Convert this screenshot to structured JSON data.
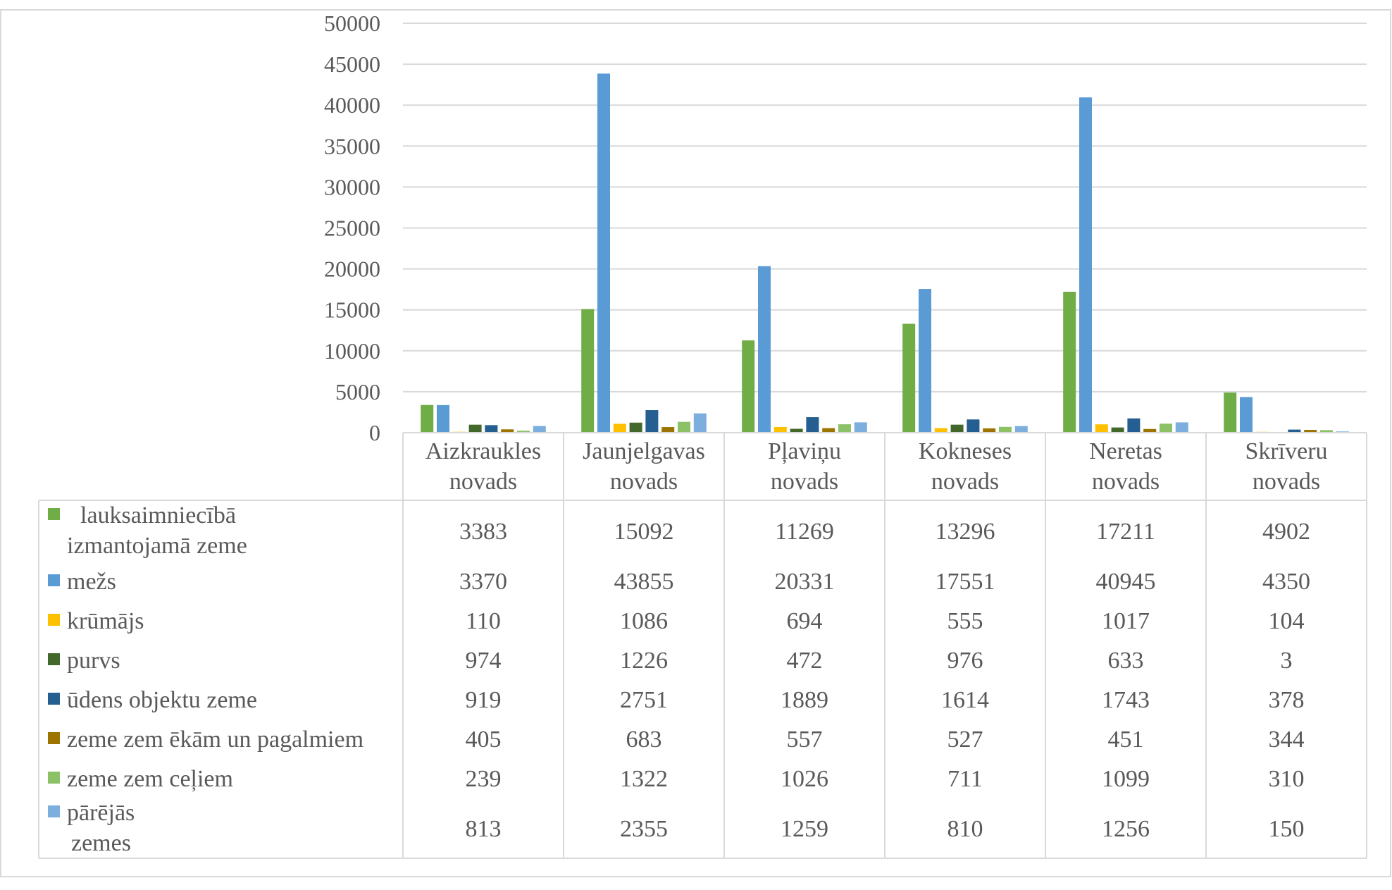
{
  "chart_data": {
    "type": "bar",
    "title": "",
    "xlabel": "",
    "ylabel": "",
    "ylim": [
      0,
      50000
    ],
    "yticks": [
      0,
      5000,
      10000,
      15000,
      20000,
      25000,
      30000,
      35000,
      40000,
      45000,
      50000
    ],
    "grid": true,
    "legend": "data-table-bottom",
    "categories": [
      [
        "Aizkraukles",
        "novads"
      ],
      [
        "Jaunjelgavas",
        "novads"
      ],
      [
        "Pļaviņu",
        "novads"
      ],
      [
        "Kokneses",
        "novads"
      ],
      [
        "Neretas",
        "novads"
      ],
      [
        "Skrīveru",
        "novads"
      ]
    ],
    "series": [
      {
        "name": [
          "lauksaimniecībā",
          "izmantojamā zeme"
        ],
        "color": "#70AD47",
        "values": [
          3383,
          15092,
          11269,
          13296,
          17211,
          4902
        ]
      },
      {
        "name": [
          "mežs"
        ],
        "color": "#5B9BD5",
        "values": [
          3370,
          43855,
          20331,
          17551,
          40945,
          4350
        ]
      },
      {
        "name": [
          "krūmājs"
        ],
        "color": "#FFC000",
        "values": [
          110,
          1086,
          694,
          555,
          1017,
          104
        ]
      },
      {
        "name": [
          "purvs"
        ],
        "color": "#43682B",
        "values": [
          974,
          1226,
          472,
          976,
          633,
          3
        ]
      },
      {
        "name": [
          "ūdens objektu zeme"
        ],
        "color": "#255E91",
        "values": [
          919,
          2751,
          1889,
          1614,
          1743,
          378
        ]
      },
      {
        "name": [
          "zeme zem ēkām un pagalmiem"
        ],
        "color": "#9E7400",
        "values": [
          405,
          683,
          557,
          527,
          451,
          344
        ]
      },
      {
        "name": [
          "zeme zem ceļiem"
        ],
        "color": "#8CC168",
        "values": [
          239,
          1322,
          1026,
          711,
          1099,
          310
        ]
      },
      {
        "name": [
          "pārējās",
          "zemes"
        ],
        "color": "#7CAFDD",
        "values": [
          813,
          2355,
          1259,
          810,
          1256,
          150
        ]
      }
    ]
  }
}
